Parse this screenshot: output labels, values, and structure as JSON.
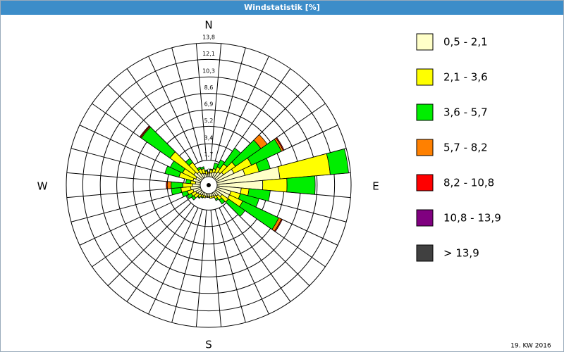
{
  "chart_data": {
    "type": "windrose",
    "title": "Windstatistik [%]",
    "footer": "19. KW 2016",
    "direction_labels": {
      "N": "N",
      "E": "E",
      "S": "S",
      "W": "W"
    },
    "x": [
      0,
      10,
      20,
      30,
      40,
      50,
      60,
      70,
      80,
      90,
      100,
      110,
      120,
      130,
      140,
      150,
      160,
      170,
      180,
      190,
      200,
      210,
      220,
      230,
      240,
      250,
      260,
      270,
      280,
      290,
      300,
      310,
      320,
      330,
      340,
      350
    ],
    "ylim": [
      0,
      13.8
    ],
    "yticks": [
      0,
      {
        "value": 1.7,
        "label": "1,7"
      },
      {
        "value": 3.4,
        "label": "3,4"
      },
      {
        "value": 5.2,
        "label": "5,2"
      },
      {
        "value": 6.9,
        "label": "6,9"
      },
      {
        "value": 8.6,
        "label": "8,6"
      },
      {
        "value": 10.3,
        "label": "10,3"
      },
      {
        "value": 12.1,
        "label": "12,1"
      },
      {
        "value": 13.8,
        "label": "13,8"
      }
    ],
    "series": [
      {
        "name": "0,5 - 2,1",
        "color": "#ffffc8",
        "values": [
          0.3,
          0.4,
          0.5,
          0.6,
          0.8,
          1.0,
          2.0,
          3.0,
          6.5,
          4.7,
          2.5,
          1.5,
          1.5,
          0.8,
          0.5,
          0.4,
          0.3,
          0.3,
          0.3,
          0.3,
          0.3,
          0.3,
          0.4,
          0.5,
          0.6,
          0.8,
          1.0,
          0.8,
          0.5,
          0.8,
          0.6,
          1.0,
          0.8,
          0.5,
          0.4,
          0.3
        ]
      },
      {
        "name": "2,1 - 3,6",
        "color": "#ffff00",
        "values": [
          0.2,
          0.3,
          0.4,
          0.6,
          1.0,
          1.5,
          2.0,
          1.5,
          5.2,
          2.5,
          0.8,
          1.0,
          1.5,
          0.8,
          0.5,
          0.3,
          0.2,
          0.2,
          0.1,
          0.1,
          0.2,
          0.2,
          0.3,
          0.5,
          0.5,
          0.6,
          1.0,
          1.0,
          0.5,
          1.5,
          1.5,
          3.0,
          1.2,
          0.5,
          0.5,
          0.3
        ]
      },
      {
        "name": "3,6 - 5,7",
        "color": "#00ee00",
        "values": [
          0,
          0.1,
          0.6,
          0.8,
          2.0,
          3.2,
          3.4,
          1.2,
          1.9,
          2.9,
          2.2,
          2.0,
          4.1,
          2.1,
          0.5,
          0.2,
          0,
          0,
          0,
          0,
          0,
          0.1,
          0.1,
          0.3,
          0.5,
          0.6,
          1.0,
          1.2,
          0.5,
          1.5,
          1.4,
          3.6,
          0.5,
          0.2,
          0.2,
          0.1
        ]
      },
      {
        "name": "5,7 - 8,2",
        "color": "#ff8000",
        "values": [
          0,
          0,
          0,
          0,
          0,
          0.8,
          0.2,
          0,
          0,
          0,
          0,
          0,
          0.3,
          0,
          0,
          0,
          0,
          0,
          0,
          0,
          0,
          0,
          0,
          0,
          0,
          0,
          0,
          0.4,
          0,
          0,
          0,
          0.1,
          0,
          0,
          0,
          0
        ]
      },
      {
        "name": "8,2 - 10,8",
        "color": "#ff0000",
        "values": [
          0,
          0,
          0,
          0,
          0,
          0,
          0.1,
          0,
          0,
          0,
          0,
          0,
          0.1,
          0,
          0,
          0,
          0,
          0,
          0,
          0,
          0,
          0,
          0,
          0,
          0,
          0,
          0,
          0.1,
          0,
          0,
          0,
          0.1,
          0,
          0,
          0,
          0
        ]
      },
      {
        "name": "10,8 - 13,9",
        "color": "#800080",
        "values": [
          0,
          0,
          0,
          0,
          0,
          0,
          0,
          0,
          0,
          0,
          0,
          0,
          0,
          0,
          0,
          0,
          0,
          0,
          0,
          0,
          0,
          0,
          0,
          0,
          0,
          0,
          0,
          0,
          0,
          0,
          0,
          0,
          0,
          0,
          0,
          0
        ]
      },
      {
        "name": "> 13,9",
        "color": "#404040",
        "values": [
          0,
          0,
          0,
          0,
          0,
          0,
          0,
          0,
          0,
          0,
          0,
          0,
          0,
          0,
          0,
          0,
          0,
          0,
          0,
          0,
          0,
          0,
          0,
          0,
          0,
          0,
          0,
          0,
          0,
          0,
          0,
          0,
          0,
          0,
          0,
          0
        ]
      }
    ]
  }
}
